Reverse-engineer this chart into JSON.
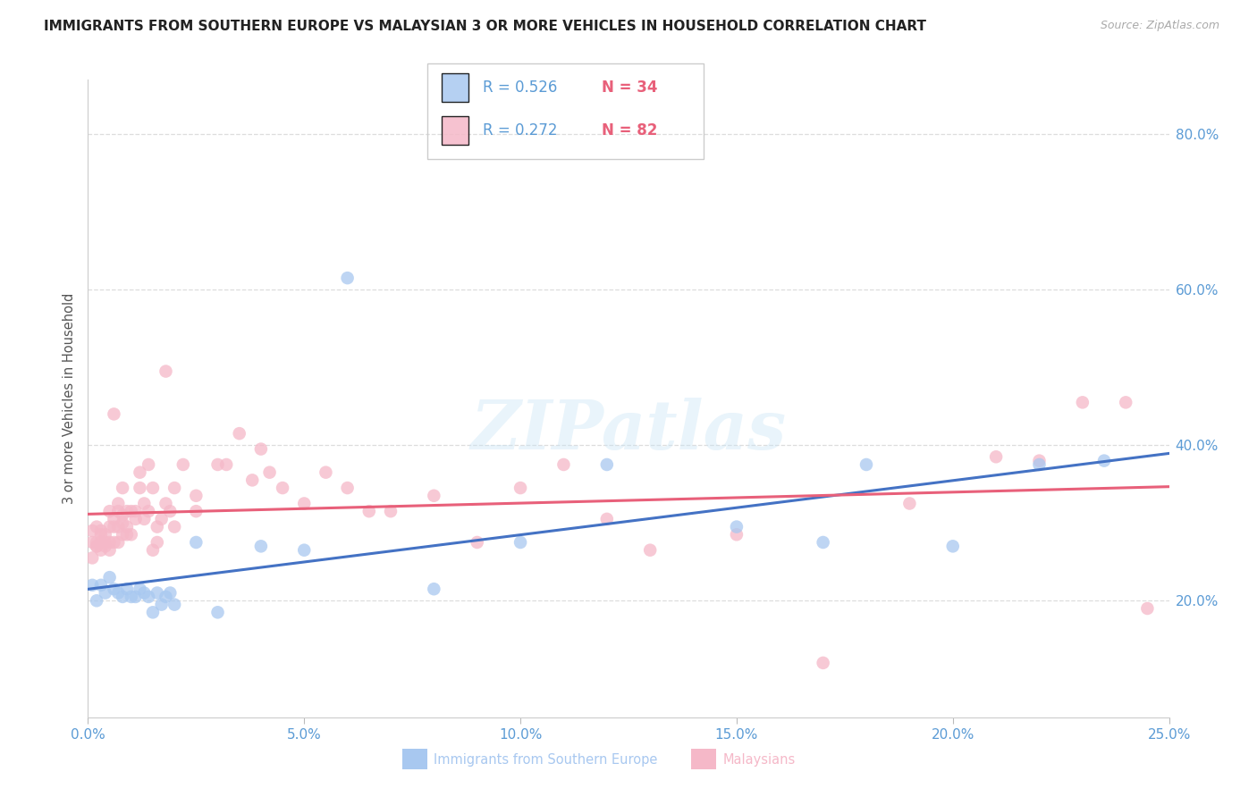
{
  "title": "IMMIGRANTS FROM SOUTHERN EUROPE VS MALAYSIAN 3 OR MORE VEHICLES IN HOUSEHOLD CORRELATION CHART",
  "source": "Source: ZipAtlas.com",
  "ylabel": "3 or more Vehicles in Household",
  "xlabel_blue": "Immigrants from Southern Europe",
  "xlabel_pink": "Malaysians",
  "xmin": 0.0,
  "xmax": 0.25,
  "ymin": 0.05,
  "ymax": 0.87,
  "blue_R": 0.526,
  "blue_N": 34,
  "pink_R": 0.272,
  "pink_N": 82,
  "blue_color": "#A8C8F0",
  "pink_color": "#F5B8C8",
  "trend_blue": "#4472C4",
  "trend_pink": "#E8607A",
  "right_label_color": "#5B9BD5",
  "legend_text_color": "#5B9BD5",
  "legend_N_color": "#E8607A",
  "blue_x": [
    0.001,
    0.002,
    0.003,
    0.004,
    0.005,
    0.006,
    0.007,
    0.008,
    0.009,
    0.01,
    0.011,
    0.012,
    0.013,
    0.014,
    0.015,
    0.016,
    0.017,
    0.018,
    0.019,
    0.02,
    0.025,
    0.03,
    0.04,
    0.05,
    0.06,
    0.08,
    0.1,
    0.12,
    0.15,
    0.17,
    0.18,
    0.2,
    0.22,
    0.235
  ],
  "blue_y": [
    0.22,
    0.2,
    0.22,
    0.21,
    0.23,
    0.215,
    0.21,
    0.205,
    0.215,
    0.205,
    0.205,
    0.215,
    0.21,
    0.205,
    0.185,
    0.21,
    0.195,
    0.205,
    0.21,
    0.195,
    0.275,
    0.185,
    0.27,
    0.265,
    0.615,
    0.215,
    0.275,
    0.375,
    0.295,
    0.275,
    0.375,
    0.27,
    0.375,
    0.38
  ],
  "pink_x": [
    0.001,
    0.001,
    0.001,
    0.002,
    0.002,
    0.002,
    0.002,
    0.003,
    0.003,
    0.003,
    0.003,
    0.004,
    0.004,
    0.004,
    0.005,
    0.005,
    0.005,
    0.005,
    0.006,
    0.006,
    0.006,
    0.006,
    0.007,
    0.007,
    0.007,
    0.007,
    0.008,
    0.008,
    0.008,
    0.008,
    0.009,
    0.009,
    0.009,
    0.01,
    0.01,
    0.011,
    0.011,
    0.012,
    0.012,
    0.013,
    0.013,
    0.014,
    0.014,
    0.015,
    0.015,
    0.016,
    0.016,
    0.017,
    0.018,
    0.018,
    0.019,
    0.02,
    0.02,
    0.022,
    0.025,
    0.025,
    0.03,
    0.032,
    0.035,
    0.038,
    0.04,
    0.042,
    0.045,
    0.05,
    0.055,
    0.06,
    0.065,
    0.07,
    0.08,
    0.09,
    0.1,
    0.11,
    0.12,
    0.13,
    0.15,
    0.17,
    0.19,
    0.21,
    0.22,
    0.23,
    0.24,
    0.245
  ],
  "pink_y": [
    0.275,
    0.255,
    0.29,
    0.27,
    0.295,
    0.275,
    0.27,
    0.275,
    0.265,
    0.285,
    0.29,
    0.27,
    0.285,
    0.275,
    0.295,
    0.315,
    0.275,
    0.265,
    0.44,
    0.305,
    0.295,
    0.275,
    0.325,
    0.295,
    0.275,
    0.315,
    0.31,
    0.345,
    0.285,
    0.3,
    0.285,
    0.315,
    0.295,
    0.315,
    0.285,
    0.305,
    0.315,
    0.365,
    0.345,
    0.325,
    0.305,
    0.315,
    0.375,
    0.345,
    0.265,
    0.295,
    0.275,
    0.305,
    0.495,
    0.325,
    0.315,
    0.295,
    0.345,
    0.375,
    0.335,
    0.315,
    0.375,
    0.375,
    0.415,
    0.355,
    0.395,
    0.365,
    0.345,
    0.325,
    0.365,
    0.345,
    0.315,
    0.315,
    0.335,
    0.275,
    0.345,
    0.375,
    0.305,
    0.265,
    0.285,
    0.12,
    0.325,
    0.385,
    0.38,
    0.455,
    0.455,
    0.19
  ]
}
